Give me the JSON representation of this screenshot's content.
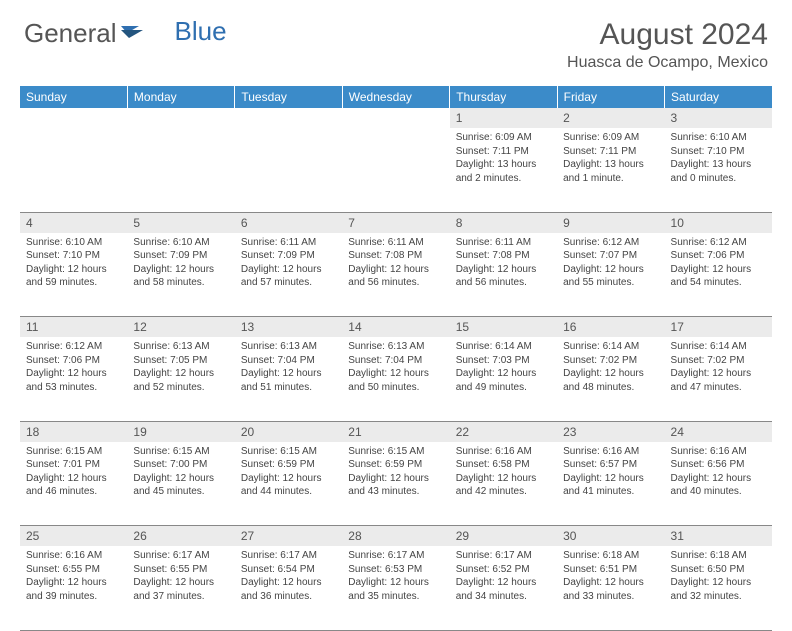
{
  "logo": {
    "text_gray": "General",
    "text_blue": "Blue"
  },
  "title": "August 2024",
  "location": "Huasca de Ocampo, Mexico",
  "colors": {
    "header_bg": "#3b8bc9",
    "header_text": "#ffffff",
    "daynum_bg": "#ebebeb",
    "text": "#444444",
    "accent": "#2f6fb0"
  },
  "day_names": [
    "Sunday",
    "Monday",
    "Tuesday",
    "Wednesday",
    "Thursday",
    "Friday",
    "Saturday"
  ],
  "weeks": [
    [
      null,
      null,
      null,
      null,
      {
        "n": "1",
        "sr": "6:09 AM",
        "ss": "7:11 PM",
        "dl": "13 hours and 2 minutes."
      },
      {
        "n": "2",
        "sr": "6:09 AM",
        "ss": "7:11 PM",
        "dl": "13 hours and 1 minute."
      },
      {
        "n": "3",
        "sr": "6:10 AM",
        "ss": "7:10 PM",
        "dl": "13 hours and 0 minutes."
      }
    ],
    [
      {
        "n": "4",
        "sr": "6:10 AM",
        "ss": "7:10 PM",
        "dl": "12 hours and 59 minutes."
      },
      {
        "n": "5",
        "sr": "6:10 AM",
        "ss": "7:09 PM",
        "dl": "12 hours and 58 minutes."
      },
      {
        "n": "6",
        "sr": "6:11 AM",
        "ss": "7:09 PM",
        "dl": "12 hours and 57 minutes."
      },
      {
        "n": "7",
        "sr": "6:11 AM",
        "ss": "7:08 PM",
        "dl": "12 hours and 56 minutes."
      },
      {
        "n": "8",
        "sr": "6:11 AM",
        "ss": "7:08 PM",
        "dl": "12 hours and 56 minutes."
      },
      {
        "n": "9",
        "sr": "6:12 AM",
        "ss": "7:07 PM",
        "dl": "12 hours and 55 minutes."
      },
      {
        "n": "10",
        "sr": "6:12 AM",
        "ss": "7:06 PM",
        "dl": "12 hours and 54 minutes."
      }
    ],
    [
      {
        "n": "11",
        "sr": "6:12 AM",
        "ss": "7:06 PM",
        "dl": "12 hours and 53 minutes."
      },
      {
        "n": "12",
        "sr": "6:13 AM",
        "ss": "7:05 PM",
        "dl": "12 hours and 52 minutes."
      },
      {
        "n": "13",
        "sr": "6:13 AM",
        "ss": "7:04 PM",
        "dl": "12 hours and 51 minutes."
      },
      {
        "n": "14",
        "sr": "6:13 AM",
        "ss": "7:04 PM",
        "dl": "12 hours and 50 minutes."
      },
      {
        "n": "15",
        "sr": "6:14 AM",
        "ss": "7:03 PM",
        "dl": "12 hours and 49 minutes."
      },
      {
        "n": "16",
        "sr": "6:14 AM",
        "ss": "7:02 PM",
        "dl": "12 hours and 48 minutes."
      },
      {
        "n": "17",
        "sr": "6:14 AM",
        "ss": "7:02 PM",
        "dl": "12 hours and 47 minutes."
      }
    ],
    [
      {
        "n": "18",
        "sr": "6:15 AM",
        "ss": "7:01 PM",
        "dl": "12 hours and 46 minutes."
      },
      {
        "n": "19",
        "sr": "6:15 AM",
        "ss": "7:00 PM",
        "dl": "12 hours and 45 minutes."
      },
      {
        "n": "20",
        "sr": "6:15 AM",
        "ss": "6:59 PM",
        "dl": "12 hours and 44 minutes."
      },
      {
        "n": "21",
        "sr": "6:15 AM",
        "ss": "6:59 PM",
        "dl": "12 hours and 43 minutes."
      },
      {
        "n": "22",
        "sr": "6:16 AM",
        "ss": "6:58 PM",
        "dl": "12 hours and 42 minutes."
      },
      {
        "n": "23",
        "sr": "6:16 AM",
        "ss": "6:57 PM",
        "dl": "12 hours and 41 minutes."
      },
      {
        "n": "24",
        "sr": "6:16 AM",
        "ss": "6:56 PM",
        "dl": "12 hours and 40 minutes."
      }
    ],
    [
      {
        "n": "25",
        "sr": "6:16 AM",
        "ss": "6:55 PM",
        "dl": "12 hours and 39 minutes."
      },
      {
        "n": "26",
        "sr": "6:17 AM",
        "ss": "6:55 PM",
        "dl": "12 hours and 37 minutes."
      },
      {
        "n": "27",
        "sr": "6:17 AM",
        "ss": "6:54 PM",
        "dl": "12 hours and 36 minutes."
      },
      {
        "n": "28",
        "sr": "6:17 AM",
        "ss": "6:53 PM",
        "dl": "12 hours and 35 minutes."
      },
      {
        "n": "29",
        "sr": "6:17 AM",
        "ss": "6:52 PM",
        "dl": "12 hours and 34 minutes."
      },
      {
        "n": "30",
        "sr": "6:18 AM",
        "ss": "6:51 PM",
        "dl": "12 hours and 33 minutes."
      },
      {
        "n": "31",
        "sr": "6:18 AM",
        "ss": "6:50 PM",
        "dl": "12 hours and 32 minutes."
      }
    ]
  ],
  "labels": {
    "sunrise": "Sunrise:",
    "sunset": "Sunset:",
    "daylight": "Daylight:"
  }
}
